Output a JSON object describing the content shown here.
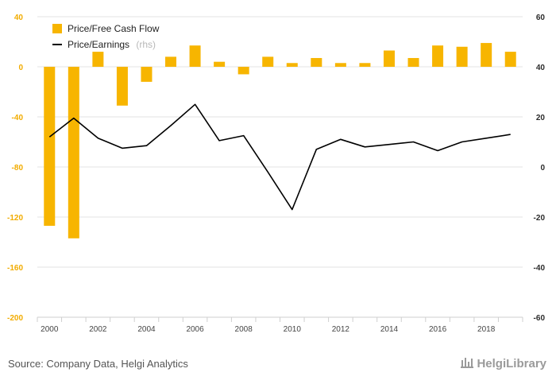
{
  "chart_data": {
    "type": "bar+line",
    "title": "",
    "x": [
      2000,
      2001,
      2002,
      2003,
      2004,
      2005,
      2006,
      2007,
      2008,
      2009,
      2010,
      2011,
      2012,
      2013,
      2014,
      2015,
      2016,
      2017,
      2018,
      2019
    ],
    "x_tick_labels": [
      "2000",
      "2002",
      "2004",
      "2006",
      "2008",
      "2010",
      "2012",
      "2014",
      "2016",
      "2018"
    ],
    "series": [
      {
        "name": "Price/Free Cash Flow",
        "type": "bar",
        "axis": "left",
        "color": "#f7b500",
        "values": [
          -127,
          -137,
          12,
          -31,
          -12,
          8,
          17,
          4,
          -6,
          8,
          3,
          7,
          3,
          3,
          13,
          7,
          17,
          16,
          19,
          12
        ]
      },
      {
        "name": "Price/Earnings",
        "name_note": "(rhs)",
        "type": "line",
        "axis": "right",
        "color": "#000000",
        "values": [
          12,
          19.5,
          11.5,
          7.5,
          8.5,
          16.5,
          25,
          10.5,
          12.5,
          -2,
          -17,
          7,
          11,
          8,
          9,
          10,
          6.5,
          10,
          11.5,
          13
        ]
      }
    ],
    "y_left": {
      "lim": [
        -200,
        40
      ],
      "ticks": [
        "40",
        "0",
        "-40",
        "-80",
        "-120",
        "-160",
        "-200"
      ]
    },
    "y_right": {
      "lim": [
        -60,
        60
      ],
      "ticks": [
        "60",
        "40",
        "20",
        "0",
        "-20",
        "-40",
        "-60"
      ]
    },
    "legend_position": "top-left",
    "grid": "horizontal"
  },
  "footer": {
    "source": "Source: Company Data, Helgi Analytics",
    "logo": "HelgiLibrary"
  }
}
